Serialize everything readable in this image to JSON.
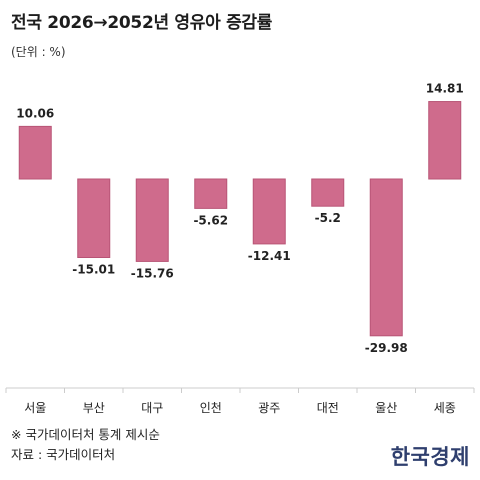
{
  "title": "전국 2026→2052년 영유아 증감률",
  "unit": "(단위 : %)",
  "note": "※ 국가데이터처 통계 제시순",
  "source": "자료 : 국가데이터처",
  "brand": "한국경제",
  "colors": {
    "bar": "#cf6b8c",
    "bar_stroke": "#b85576",
    "axis": "#cccccc",
    "text": "#222222"
  },
  "chart_data": {
    "type": "bar",
    "categories": [
      "서울",
      "부산",
      "대구",
      "인천",
      "광주",
      "대전",
      "울산",
      "세종"
    ],
    "values": [
      10.06,
      -15.01,
      -15.76,
      -5.62,
      -12.41,
      -5.2,
      -29.98,
      14.81
    ],
    "value_labels": [
      "10.06",
      "-15.01",
      "-15.76",
      "-5.62",
      "-12.41",
      "-5.2",
      "-29.98",
      "14.81"
    ],
    "ylim": [
      -30,
      15
    ],
    "grid": false,
    "legend": "none"
  }
}
